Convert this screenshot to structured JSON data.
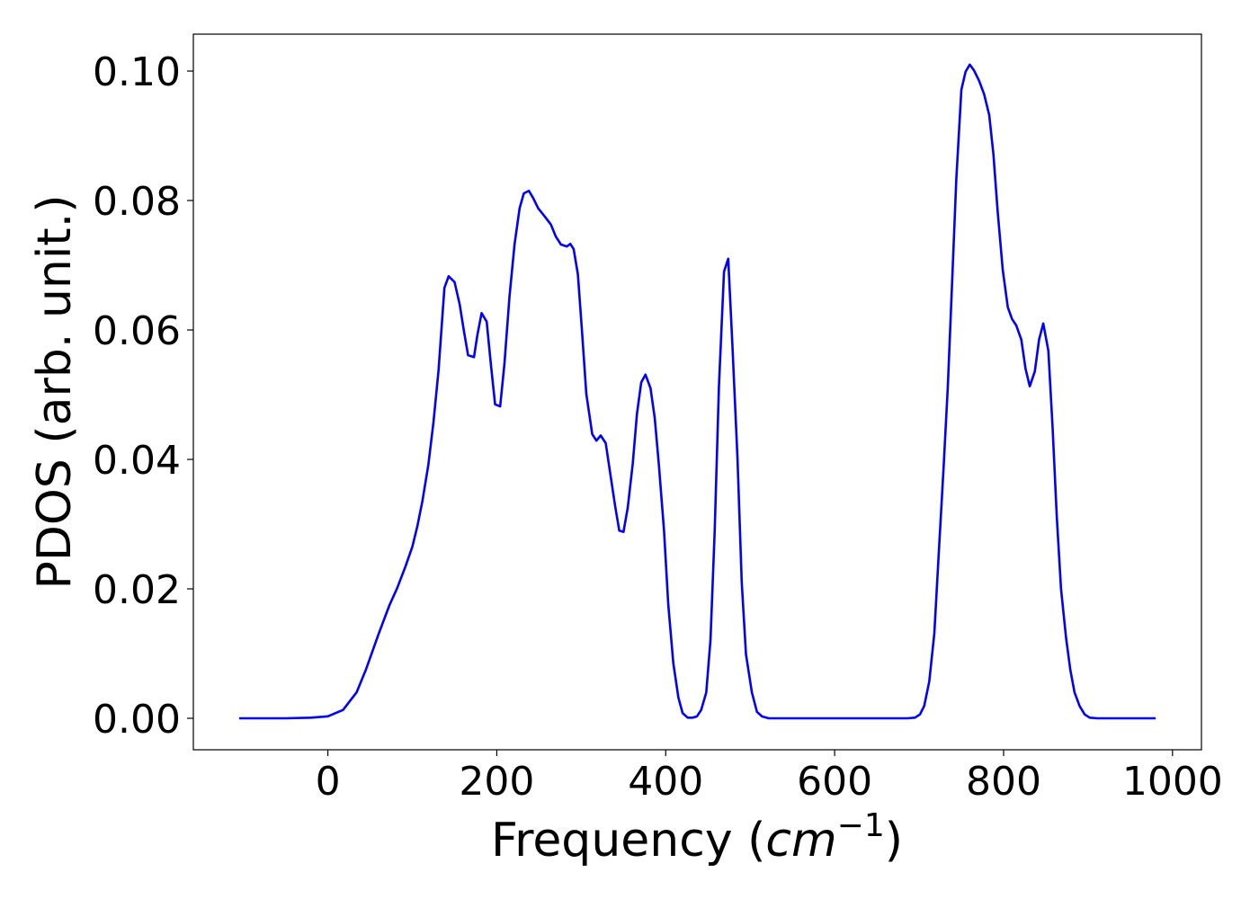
{
  "chart_data": {
    "type": "line",
    "y_label": "PDOS (arb. unit.)",
    "x_label": {
      "prefix": "Frequency (",
      "unit": "cm",
      "exponent": "−1",
      "suffix": ")"
    },
    "x": [
      -105,
      -50,
      -20,
      0,
      18,
      34,
      45,
      60,
      73,
      82,
      92,
      100,
      106,
      112,
      119,
      125,
      131,
      138,
      143,
      150,
      156,
      161,
      166,
      173,
      177,
      182,
      188,
      193,
      198,
      204,
      209,
      215,
      221,
      227,
      232,
      238,
      243,
      249,
      257,
      264,
      270,
      276,
      283,
      287,
      291,
      296,
      301,
      306,
      313,
      318,
      323,
      329,
      334,
      340,
      345,
      350,
      355,
      361,
      366,
      371,
      376,
      382,
      387,
      392,
      398,
      403,
      409,
      415,
      420,
      426,
      432,
      437,
      442,
      448,
      453,
      458,
      463,
      469,
      474,
      479,
      485,
      490,
      495,
      502,
      508,
      514,
      522,
      600,
      686,
      695,
      701,
      706,
      712,
      718,
      723,
      729,
      734,
      739,
      744,
      750,
      755,
      760,
      765,
      771,
      777,
      783,
      788,
      793,
      799,
      805,
      810,
      815,
      821,
      826,
      831,
      837,
      842,
      847,
      853,
      858,
      863,
      868,
      874,
      879,
      884,
      890,
      896,
      902,
      911,
      980
    ],
    "series": [
      {
        "name": "PDOS",
        "color": "#0000ff",
        "values": [
          0,
          0,
          0.0001,
          0.0003,
          0.0013,
          0.004,
          0.0075,
          0.013,
          0.0175,
          0.0201,
          0.0235,
          0.0265,
          0.0297,
          0.0336,
          0.0392,
          0.0457,
          0.0537,
          0.0665,
          0.0683,
          0.0674,
          0.064,
          0.0599,
          0.0561,
          0.0558,
          0.0592,
          0.0626,
          0.0613,
          0.0547,
          0.0485,
          0.0482,
          0.0547,
          0.0651,
          0.0732,
          0.0788,
          0.0811,
          0.0815,
          0.0804,
          0.0788,
          0.0775,
          0.0763,
          0.0744,
          0.0732,
          0.0729,
          0.0733,
          0.0725,
          0.0686,
          0.0596,
          0.0501,
          0.0439,
          0.0429,
          0.0437,
          0.0425,
          0.0381,
          0.0329,
          0.029,
          0.0288,
          0.0325,
          0.0394,
          0.0471,
          0.0519,
          0.0531,
          0.051,
          0.0464,
          0.039,
          0.029,
          0.0176,
          0.0085,
          0.0032,
          0.0008,
          0.0001,
          0.0001,
          0.0003,
          0.0013,
          0.004,
          0.0121,
          0.029,
          0.0513,
          0.069,
          0.071,
          0.0575,
          0.0401,
          0.021,
          0.0099,
          0.004,
          0.001,
          0.0003,
          0,
          0,
          0,
          0.0001,
          0.0006,
          0.0019,
          0.0057,
          0.0131,
          0.0249,
          0.0388,
          0.0513,
          0.0672,
          0.0832,
          0.0971,
          0.0999,
          0.101,
          0.1001,
          0.0985,
          0.0964,
          0.0932,
          0.0871,
          0.0783,
          0.0693,
          0.0635,
          0.0617,
          0.0607,
          0.0585,
          0.054,
          0.0513,
          0.0536,
          0.0585,
          0.061,
          0.0568,
          0.045,
          0.0311,
          0.02,
          0.0124,
          0.0075,
          0.004,
          0.0019,
          0.0006,
          0.0001,
          0,
          0
        ]
      }
    ],
    "xlim": [
      -159.25,
      1034.25
    ],
    "ylim": [
      -0.00486,
      0.1057
    ],
    "xticks": [
      0,
      200,
      400,
      600,
      800,
      1000
    ],
    "yticks": [
      {
        "value": 0,
        "label": "0.00"
      },
      {
        "value": 0.02,
        "label": "0.02"
      },
      {
        "value": 0.04,
        "label": "0.04"
      },
      {
        "value": 0.06,
        "label": "0.06"
      },
      {
        "value": 0.08,
        "label": "0.08"
      },
      {
        "value": 0.1,
        "label": "0.10"
      }
    ],
    "grid": false
  }
}
